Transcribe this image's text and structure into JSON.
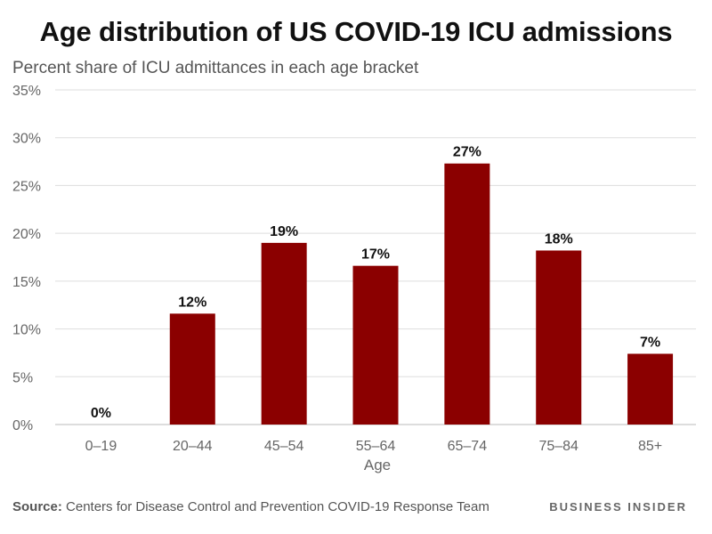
{
  "chart_data": {
    "type": "bar",
    "title": "Age distribution of US COVID-19 ICU admissions",
    "subtitle": "Percent share of ICU admittances in each age bracket",
    "xlabel": "Age",
    "ylabel": "",
    "categories": [
      "0–19",
      "20–44",
      "45–54",
      "55–64",
      "65–74",
      "75–84",
      "85+"
    ],
    "values": [
      0,
      11.6,
      19.0,
      16.6,
      27.3,
      18.2,
      7.4
    ],
    "data_labels": [
      "0%",
      "12%",
      "19%",
      "17%",
      "27%",
      "18%",
      "7%"
    ],
    "ylim": [
      0,
      35
    ],
    "yticks": [
      0,
      5,
      10,
      15,
      20,
      25,
      30,
      35
    ],
    "ytick_labels": [
      "0%",
      "5%",
      "10%",
      "15%",
      "20%",
      "25%",
      "30%",
      "35%"
    ],
    "grid": true,
    "bar_color": "#8b0000"
  },
  "footer": {
    "source_label": "Source:",
    "source_text": " Centers for Disease Control and Prevention COVID-19 Response Team",
    "brand": "BUSINESS INSIDER"
  }
}
